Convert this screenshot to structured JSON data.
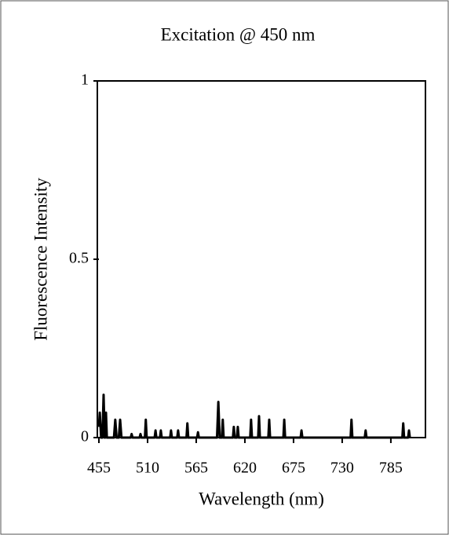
{
  "chart_data": {
    "type": "line",
    "title": "Excitation @ 450 nm",
    "x_label": "Wavelength (nm)",
    "y_label": "Fluorescence Intensity",
    "color": "#000000",
    "x": [
      455,
      456,
      457.5,
      459,
      460.3,
      461.5,
      462,
      463,
      464,
      472,
      473.5,
      475,
      477.5,
      479,
      480.5,
      491,
      492,
      493,
      501,
      502,
      503,
      507,
      508,
      509,
      518,
      519,
      520,
      524,
      525,
      526,
      535.5,
      536.5,
      537.5,
      543.5,
      544.5,
      545.5,
      554,
      555,
      556,
      566,
      567,
      568,
      588.5,
      590,
      591.5,
      594,
      595,
      596,
      606.5,
      607.5,
      608.5,
      611,
      612,
      613,
      626,
      627,
      628,
      635,
      636,
      637,
      646.5,
      647.5,
      648.5,
      663.5,
      664.5,
      665.5,
      683,
      684,
      685,
      739.5,
      740.5,
      741.5,
      755.5,
      756.5,
      757.5,
      798,
      799,
      800,
      804.5,
      805.5,
      806.5
    ],
    "values": [
      0.03,
      0.07,
      0,
      0,
      0.12,
      0,
      0,
      0.07,
      0,
      0,
      0.05,
      0,
      0,
      0.05,
      0,
      0,
      0.01,
      0,
      0,
      0.01,
      0,
      0,
      0.05,
      0,
      0,
      0.02,
      0,
      0,
      0.02,
      0,
      0,
      0.02,
      0,
      0,
      0.02,
      0,
      0,
      0.04,
      0,
      0,
      0.015,
      0,
      0,
      0.1,
      0,
      0,
      0.05,
      0,
      0,
      0.03,
      0,
      0,
      0.03,
      0,
      0,
      0.05,
      0,
      0,
      0.06,
      0,
      0,
      0.05,
      0,
      0,
      0.05,
      0,
      0,
      0.02,
      0,
      0,
      0.05,
      0,
      0,
      0.02,
      0,
      0,
      0.04,
      0,
      0,
      0.02,
      0
    ],
    "xlim": [
      455,
      825
    ],
    "ylim": [
      0,
      1
    ],
    "xticks": [
      455,
      510,
      565,
      620,
      675,
      730,
      785
    ],
    "yticks": [
      0,
      0.5,
      1
    ]
  }
}
